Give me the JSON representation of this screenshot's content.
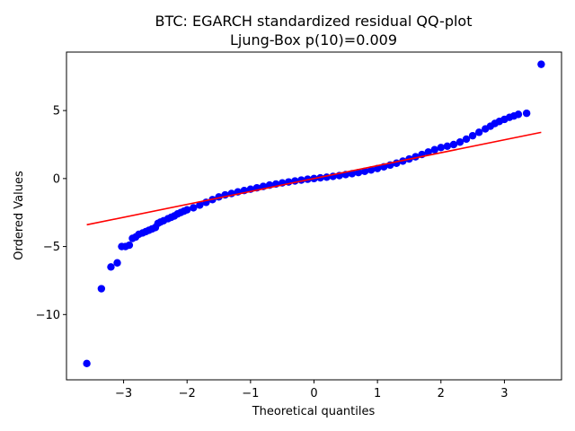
{
  "chart_data": {
    "type": "scatter",
    "title": "BTC: EGARCH standardized residual QQ-plot",
    "subtitle": "Ljung-Box p(10)=0.009",
    "xlabel": "Theoretical quantiles",
    "ylabel": "Ordered Values",
    "xlim": [
      -3.9,
      3.9
    ],
    "ylim": [
      -14.8,
      9.3
    ],
    "xticks": [
      -3,
      -2,
      -1,
      0,
      1,
      2,
      3
    ],
    "xtick_labels": [
      "−3",
      "−2",
      "−1",
      "0",
      "1",
      "2",
      "3"
    ],
    "yticks": [
      -10,
      -5,
      0,
      5
    ],
    "ytick_labels": [
      "−10",
      "−5",
      "0",
      "5"
    ],
    "grid": false,
    "legend": null,
    "fit_line": {
      "x": [
        -3.58,
        3.58
      ],
      "y": [
        -3.4,
        3.4
      ],
      "color": "#ff0000"
    },
    "points_color": "#0000ff",
    "points": [
      [
        -3.58,
        -13.6
      ],
      [
        -3.35,
        -8.1
      ],
      [
        -3.2,
        -6.5
      ],
      [
        -3.1,
        -6.2
      ],
      [
        -3.03,
        -5.0
      ],
      [
        -2.97,
        -5.0
      ],
      [
        -2.91,
        -4.9
      ],
      [
        -2.86,
        -4.4
      ],
      [
        -2.81,
        -4.3
      ],
      [
        -2.76,
        -4.1
      ],
      [
        -2.7,
        -4.0
      ],
      [
        -2.65,
        -3.9
      ],
      [
        -2.6,
        -3.8
      ],
      [
        -2.55,
        -3.7
      ],
      [
        -2.5,
        -3.6
      ],
      [
        -2.46,
        -3.3
      ],
      [
        -2.42,
        -3.2
      ],
      [
        -2.37,
        -3.1
      ],
      [
        -2.3,
        -2.95
      ],
      [
        -2.25,
        -2.85
      ],
      [
        -2.2,
        -2.75
      ],
      [
        -2.15,
        -2.6
      ],
      [
        -2.1,
        -2.5
      ],
      [
        -2.05,
        -2.4
      ],
      [
        -2.0,
        -2.3
      ],
      [
        -1.9,
        -2.15
      ],
      [
        -1.8,
        -1.95
      ],
      [
        -1.7,
        -1.75
      ],
      [
        -1.6,
        -1.55
      ],
      [
        -1.5,
        -1.35
      ],
      [
        -1.4,
        -1.2
      ],
      [
        -1.3,
        -1.1
      ],
      [
        -1.2,
        -0.98
      ],
      [
        -1.1,
        -0.88
      ],
      [
        -1.0,
        -0.78
      ],
      [
        -0.9,
        -0.68
      ],
      [
        -0.8,
        -0.58
      ],
      [
        -0.7,
        -0.48
      ],
      [
        -0.6,
        -0.4
      ],
      [
        -0.5,
        -0.32
      ],
      [
        -0.4,
        -0.25
      ],
      [
        -0.3,
        -0.18
      ],
      [
        -0.2,
        -0.11
      ],
      [
        -0.1,
        -0.05
      ],
      [
        0.0,
        0.0
      ],
      [
        0.1,
        0.05
      ],
      [
        0.2,
        0.1
      ],
      [
        0.3,
        0.16
      ],
      [
        0.4,
        0.22
      ],
      [
        0.5,
        0.29
      ],
      [
        0.6,
        0.36
      ],
      [
        0.7,
        0.44
      ],
      [
        0.8,
        0.53
      ],
      [
        0.9,
        0.63
      ],
      [
        1.0,
        0.74
      ],
      [
        1.1,
        0.86
      ],
      [
        1.2,
        0.99
      ],
      [
        1.3,
        1.13
      ],
      [
        1.4,
        1.28
      ],
      [
        1.5,
        1.44
      ],
      [
        1.6,
        1.6
      ],
      [
        1.7,
        1.77
      ],
      [
        1.8,
        1.95
      ],
      [
        1.9,
        2.12
      ],
      [
        2.0,
        2.28
      ],
      [
        2.1,
        2.38
      ],
      [
        2.2,
        2.5
      ],
      [
        2.3,
        2.68
      ],
      [
        2.4,
        2.9
      ],
      [
        2.5,
        3.15
      ],
      [
        2.6,
        3.4
      ],
      [
        2.7,
        3.65
      ],
      [
        2.78,
        3.85
      ],
      [
        2.85,
        4.05
      ],
      [
        2.92,
        4.2
      ],
      [
        3.0,
        4.35
      ],
      [
        3.08,
        4.5
      ],
      [
        3.15,
        4.6
      ],
      [
        3.22,
        4.72
      ],
      [
        3.35,
        4.8
      ],
      [
        3.58,
        8.4
      ]
    ]
  }
}
